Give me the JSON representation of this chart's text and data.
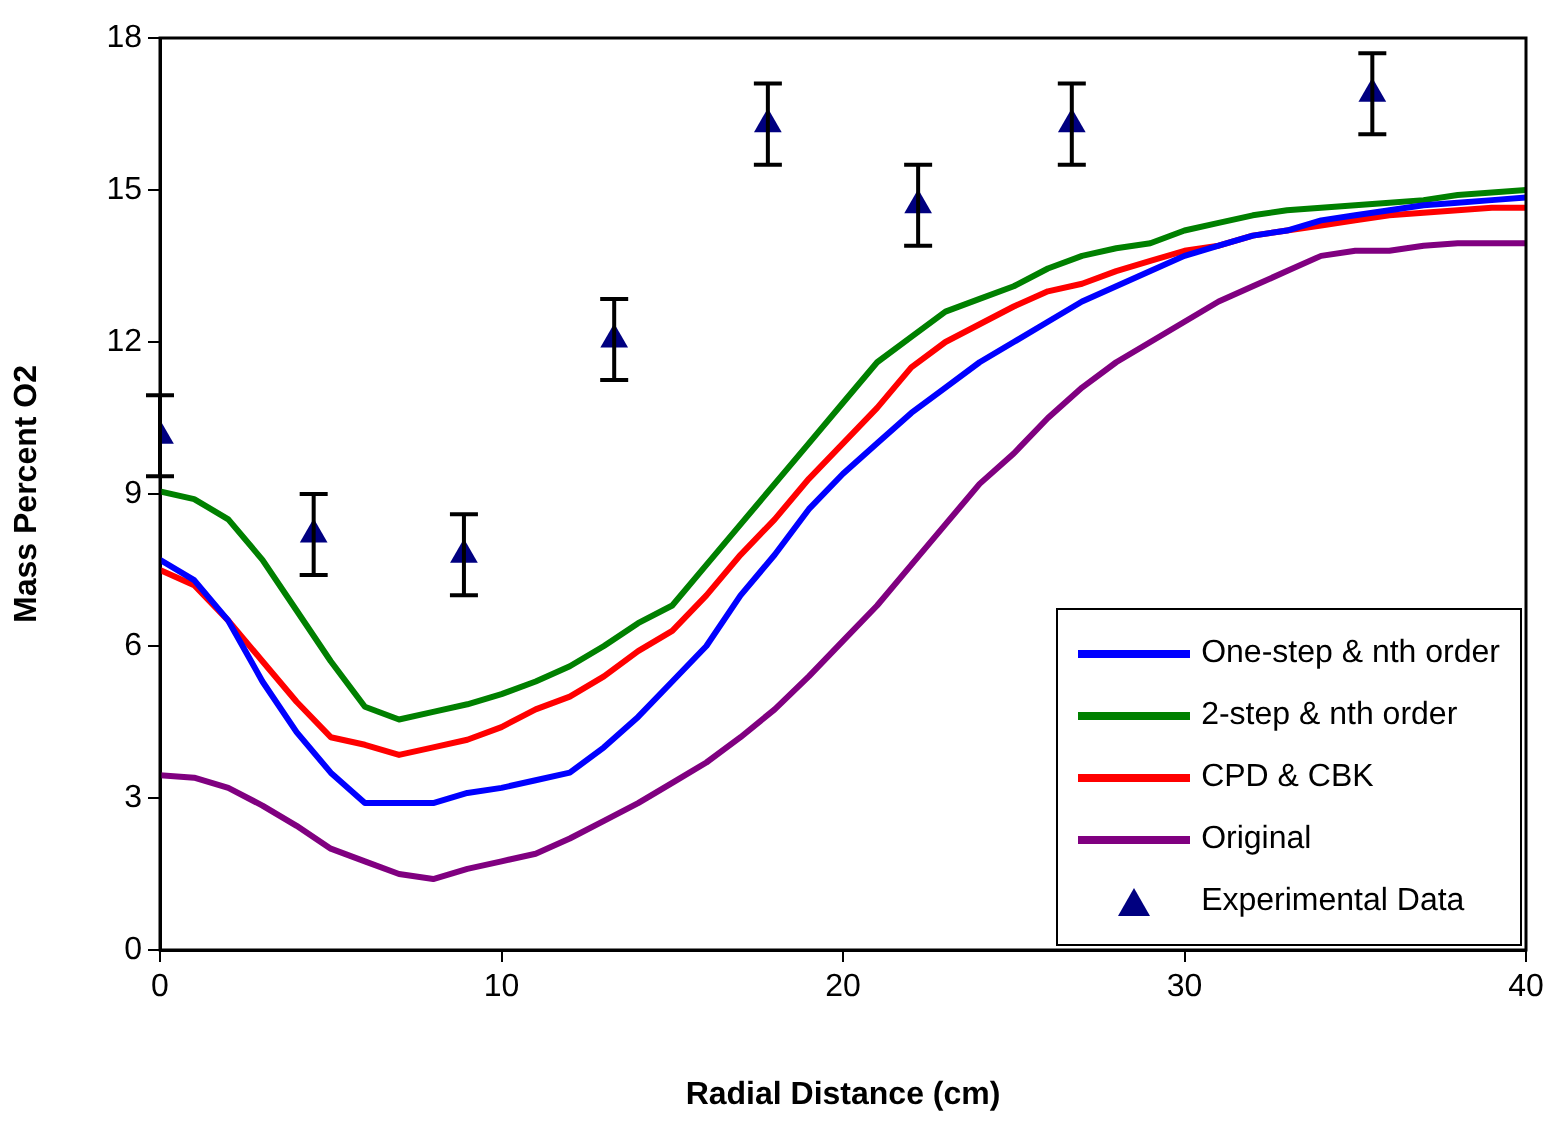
{
  "chart_data": {
    "type": "line",
    "xlabel": "Radial Distance (cm)",
    "ylabel": "Mass Percent O2",
    "xlim": [
      0,
      40
    ],
    "xticks": [
      0,
      10,
      20,
      30,
      40
    ],
    "ylim": [
      0,
      18
    ],
    "yticks": [
      0,
      3,
      6,
      9,
      12,
      15,
      18
    ],
    "grid": false,
    "legend": "bottom right",
    "marker": "none",
    "line_style": "solid",
    "x": [
      0,
      1,
      2,
      3,
      4,
      5,
      6,
      7,
      8,
      9,
      10,
      11,
      12,
      13,
      14,
      15,
      16,
      17,
      18,
      19,
      20,
      21,
      22,
      23,
      24,
      25,
      26,
      27,
      28,
      29,
      30,
      31,
      32,
      33,
      34,
      35,
      36,
      37,
      38,
      39,
      40
    ],
    "series": [
      {
        "name": "One-step & nth order",
        "color": "#0000ff",
        "values": [
          7.7,
          7.3,
          6.5,
          5.3,
          4.3,
          3.5,
          2.9,
          2.9,
          2.9,
          3.1,
          3.2,
          3.35,
          3.5,
          4.0,
          4.6,
          5.3,
          6.0,
          7.0,
          7.8,
          8.7,
          9.4,
          10.0,
          10.6,
          11.1,
          11.6,
          12.0,
          12.4,
          12.8,
          13.1,
          13.4,
          13.7,
          13.9,
          14.1,
          14.2,
          14.4,
          14.5,
          14.6,
          14.7,
          14.75,
          14.8,
          14.85
        ]
      },
      {
        "name": "2-step & nth order",
        "color": "#008000",
        "values": [
          9.05,
          8.9,
          8.5,
          7.7,
          6.7,
          5.7,
          4.8,
          4.55,
          4.7,
          4.85,
          5.05,
          5.3,
          5.6,
          6.0,
          6.45,
          6.8,
          7.6,
          8.4,
          9.2,
          10.0,
          10.8,
          11.6,
          12.1,
          12.6,
          12.85,
          13.1,
          13.45,
          13.7,
          13.85,
          13.95,
          14.2,
          14.35,
          14.5,
          14.6,
          14.65,
          14.7,
          14.75,
          14.8,
          14.9,
          14.95,
          15.0
        ]
      },
      {
        "name": "CPD & CBK",
        "color": "#ff0000",
        "values": [
          7.5,
          7.2,
          6.5,
          5.7,
          4.9,
          4.2,
          4.05,
          3.85,
          4.0,
          4.15,
          4.4,
          4.75,
          5.0,
          5.4,
          5.9,
          6.3,
          7.0,
          7.8,
          8.5,
          9.3,
          10.0,
          10.7,
          11.5,
          12.0,
          12.35,
          12.7,
          13.0,
          13.15,
          13.4,
          13.6,
          13.8,
          13.9,
          14.1,
          14.2,
          14.3,
          14.4,
          14.5,
          14.55,
          14.6,
          14.65,
          14.65
        ]
      },
      {
        "name": "Original",
        "color": "#800080",
        "values": [
          3.45,
          3.4,
          3.2,
          2.85,
          2.45,
          2.0,
          1.75,
          1.5,
          1.4,
          1.6,
          1.75,
          1.9,
          2.2,
          2.55,
          2.9,
          3.3,
          3.7,
          4.2,
          4.75,
          5.4,
          6.1,
          6.8,
          7.6,
          8.4,
          9.2,
          9.8,
          10.5,
          11.1,
          11.6,
          12.0,
          12.4,
          12.8,
          13.1,
          13.4,
          13.7,
          13.8,
          13.8,
          13.9,
          13.95,
          13.95,
          13.95
        ]
      },
      {
        "name": "Experimental Data",
        "type": "scatter",
        "marker": "triangle",
        "color": "#000080",
        "x": [
          0,
          4.5,
          8.9,
          13.3,
          17.8,
          22.2,
          26.7,
          35.5
        ],
        "values": [
          10.15,
          8.2,
          7.8,
          12.05,
          16.3,
          14.7,
          16.3,
          16.9
        ],
        "errors": [
          0.8,
          0.8,
          0.8,
          0.8,
          0.8,
          0.8,
          0.8,
          0.8
        ]
      }
    ]
  }
}
